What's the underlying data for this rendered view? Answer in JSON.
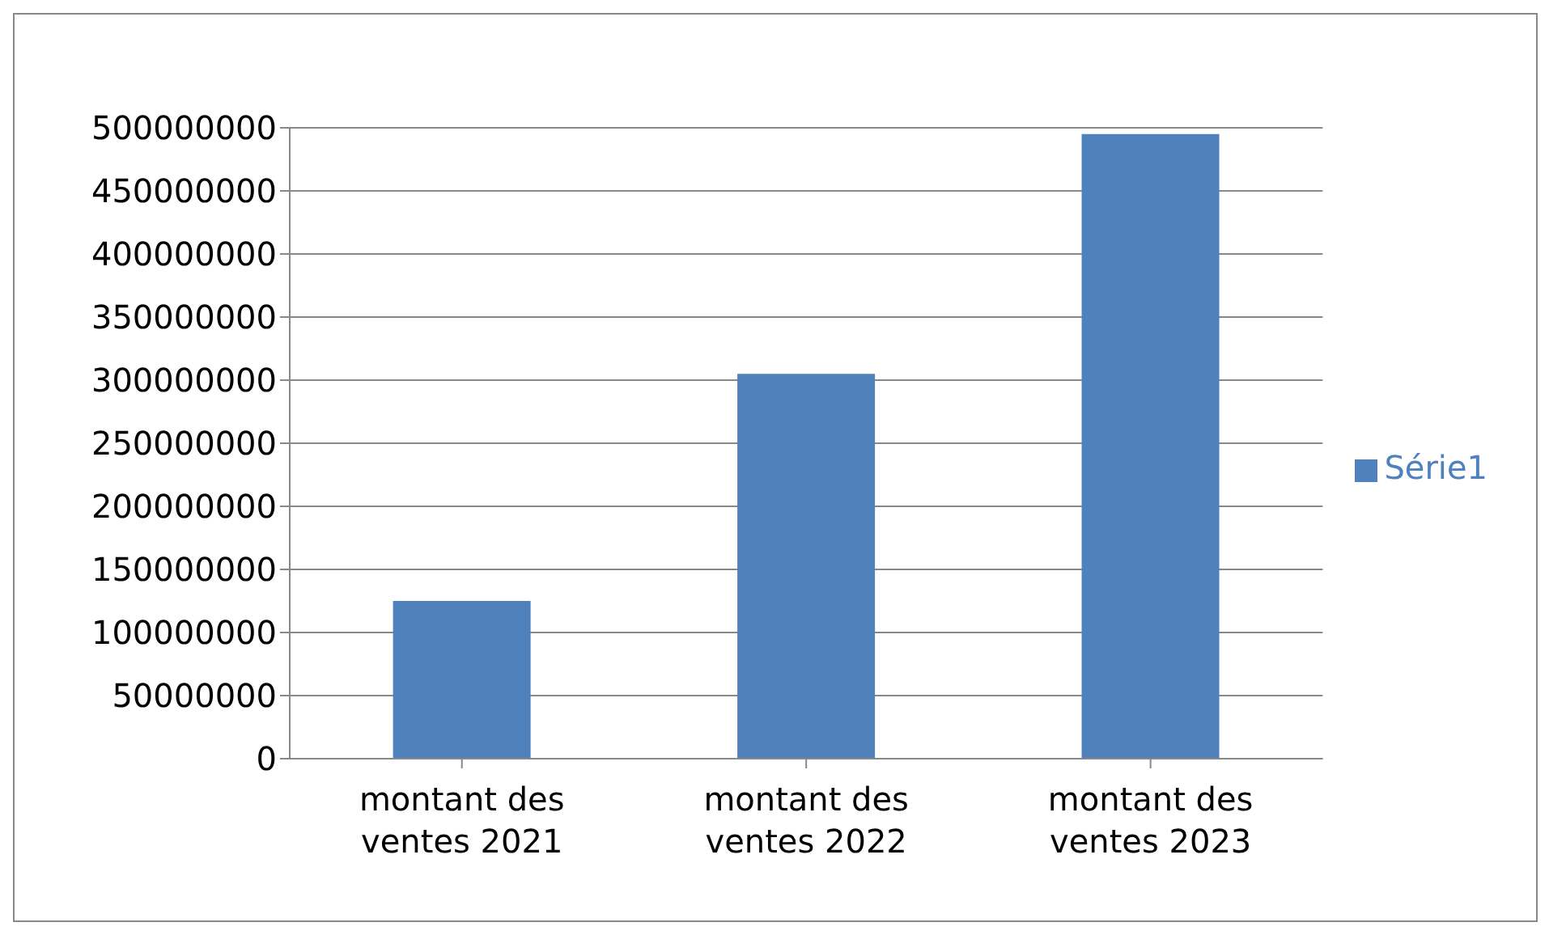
{
  "chart_data": {
    "type": "bar",
    "categories": [
      "montant des ventes 2021",
      "montant des ventes 2022",
      "montant des ventes 2023"
    ],
    "series": [
      {
        "name": "Série1",
        "color": "#4f81bd",
        "values": [
          125000000,
          305000000,
          495000000
        ]
      }
    ],
    "ylim": [
      0,
      500000000
    ],
    "yticks": [
      0,
      50000000,
      100000000,
      150000000,
      200000000,
      250000000,
      300000000,
      350000000,
      400000000,
      450000000,
      500000000
    ],
    "grid": "y",
    "legend": "right"
  }
}
